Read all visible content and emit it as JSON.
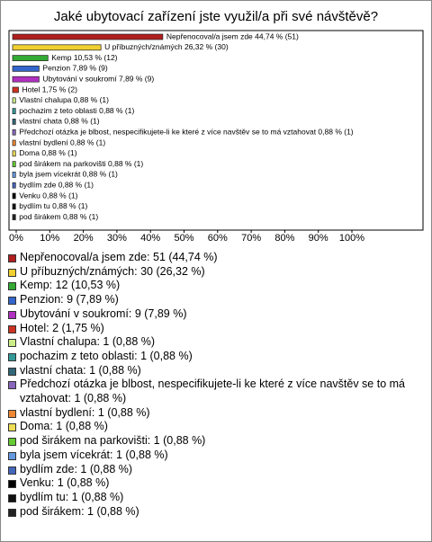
{
  "chart_data": {
    "type": "hbar",
    "title": "Jaké ubytovací zařízení jste využil/a při své návštěvě?",
    "categories": [
      "Nepřenocoval/a jsem zde",
      "U příbuzných/známých",
      "Kemp",
      "Penzion",
      "Ubytování v soukromí",
      "Hotel",
      "Vlastní chalupa",
      "pochazim z teto oblasti",
      "vlastní chata",
      "Předchozí otázka je blbost, nespecifikujete-li ke které z více navštěv se to má vztahovat",
      "vlastní bydlení",
      "Doma",
      "pod širákem na parkovišti",
      "byla jsem vícekrát",
      "bydlím zde",
      "Venku",
      "bydlím tu",
      "pod širákem"
    ],
    "values": [
      44.74,
      26.32,
      10.53,
      7.89,
      7.89,
      1.75,
      0.88,
      0.88,
      0.88,
      0.88,
      0.88,
      0.88,
      0.88,
      0.88,
      0.88,
      0.88,
      0.88,
      0.88
    ],
    "value_labels": [
      "Nepřenocoval/a jsem zde 44,74 % (51)",
      "U příbuzných/známých 26,32 % (30)",
      "Kemp 10,53 % (12)",
      "Penzion 7,89 % (9)",
      "Ubytování v soukromí 7,89 % (9)",
      "Hotel 1,75 % (2)",
      "Vlastní chalupa 0,88 % (1)",
      "pochazim z teto oblasti 0,88 % (1)",
      "vlastní chata 0,88 % (1)",
      "Předchozí otázka je blbost, nespecifikujete-li ke které z více navštěv se to má vztahovat 0,88 % (1)",
      "vlastní bydlení 0,88 % (1)",
      "Doma 0,88 % (1)",
      "pod širákem na parkovišti 0,88 % (1)",
      "byla jsem vícekrát 0,88 % (1)",
      "bydlím zde 0,88 % (1)",
      "Venku 0,88 % (1)",
      "bydlím tu 0,88 % (1)",
      "pod širákem 0,88 % (1)"
    ],
    "legend_labels": [
      "Nepřenocoval/a jsem zde: 51 (44,74 %)",
      "U příbuzných/známých: 30 (26,32 %)",
      "Kemp: 12 (10,53 %)",
      "Penzion: 9 (7,89 %)",
      "Ubytování v soukromí: 9 (7,89 %)",
      "Hotel: 2 (1,75 %)",
      "Vlastní chalupa: 1 (0,88 %)",
      "pochazim z teto oblasti: 1 (0,88 %)",
      "vlastní chata: 1 (0,88 %)",
      "Předchozí otázka je blbost, nespecifikujete-li ke které z více navštěv se to má vztahovat: 1 (0,88 %)",
      "vlastní bydlení: 1 (0,88 %)",
      "Doma: 1 (0,88 %)",
      "pod širákem na parkovišti: 1 (0,88 %)",
      "byla jsem vícekrát: 1 (0,88 %)",
      "bydlím zde: 1 (0,88 %)",
      "Venku: 1 (0,88 %)",
      "bydlím tu: 1 (0,88 %)",
      "pod širákem: 1 (0,88 %)"
    ],
    "colors": [
      "#b01e1e",
      "#f0d030",
      "#33aa33",
      "#3366cc",
      "#b030c0",
      "#cc3322",
      "#ccee88",
      "#339999",
      "#336677",
      "#8866bb",
      "#ee8833",
      "#eedd55",
      "#66cc33",
      "#6699dd",
      "#4466bb",
      "#000000",
      "#111111",
      "#222222"
    ],
    "xlim": [
      0,
      100
    ],
    "xticks": [
      {
        "value": 0,
        "label": "0%"
      },
      {
        "value": 10,
        "label": "10%"
      },
      {
        "value": 20,
        "label": "20%"
      },
      {
        "value": 30,
        "label": "30%"
      },
      {
        "value": 40,
        "label": "40%"
      },
      {
        "value": 50,
        "label": "50%"
      },
      {
        "value": 60,
        "label": "60%"
      },
      {
        "value": 70,
        "label": "70%"
      },
      {
        "value": 80,
        "label": "80%"
      },
      {
        "value": 90,
        "label": "90%"
      },
      {
        "value": 100,
        "label": "100%"
      }
    ]
  }
}
